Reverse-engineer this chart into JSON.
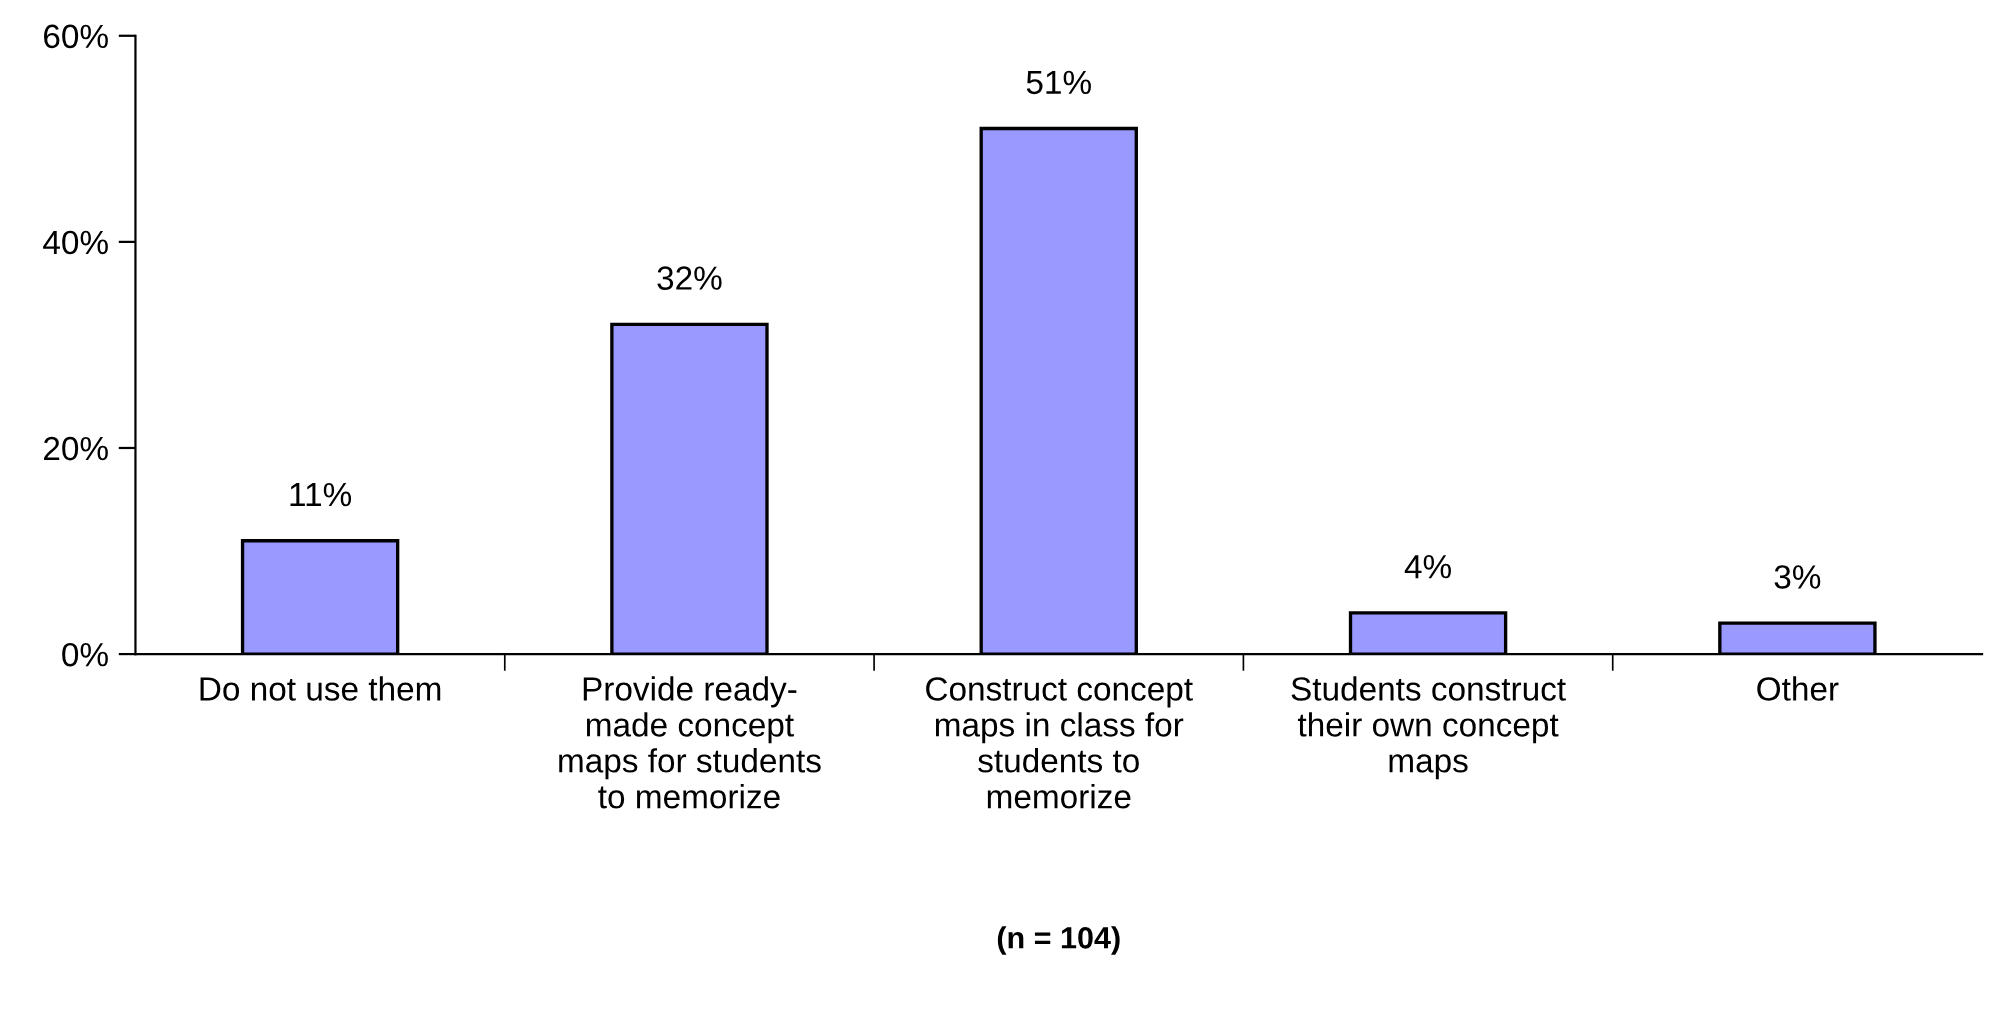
{
  "chart_data": {
    "type": "bar",
    "categories": [
      "Do not use them",
      "Provide ready-\nmade concept\nmaps for students\nto memorize",
      "Construct concept\nmaps in class for\nstudents to\nmemorize",
      "Students construct\ntheir own concept\nmaps",
      "Other"
    ],
    "values": [
      11,
      32,
      51,
      4,
      3
    ],
    "value_labels": [
      "11%",
      "32%",
      "51%",
      "4%",
      "3%"
    ],
    "color": "#9999ff",
    "xlabel": "(n = 104)",
    "ylim": [
      0,
      60
    ],
    "yticks": [
      {
        "value": 0,
        "label": "0%"
      },
      {
        "value": 20,
        "label": "20%"
      },
      {
        "value": 40,
        "label": "40%"
      },
      {
        "value": 60,
        "label": "60%"
      }
    ],
    "grid": false,
    "legend": false
  }
}
